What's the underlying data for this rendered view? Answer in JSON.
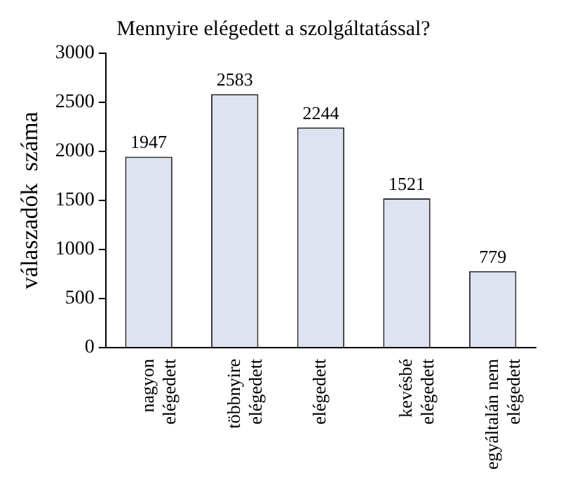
{
  "chart_data": {
    "type": "bar",
    "title": "Mennyire elégedett a szolgáltatással?",
    "ylabel": "válaszadók  száma",
    "categories": [
      "nagyon elégedett",
      "többnyire elégedett",
      "elégedett",
      "kevésbé elégedett",
      "egyáltalán nem elégedett"
    ],
    "values": [
      1947,
      2583,
      2244,
      1521,
      779
    ],
    "color": "#dde3f0",
    "data_labels": true,
    "ylim": [
      0,
      3000
    ],
    "yticks": [
      0,
      500,
      1000,
      1500,
      2000,
      2500,
      3000
    ],
    "grid": false,
    "legend": false
  }
}
